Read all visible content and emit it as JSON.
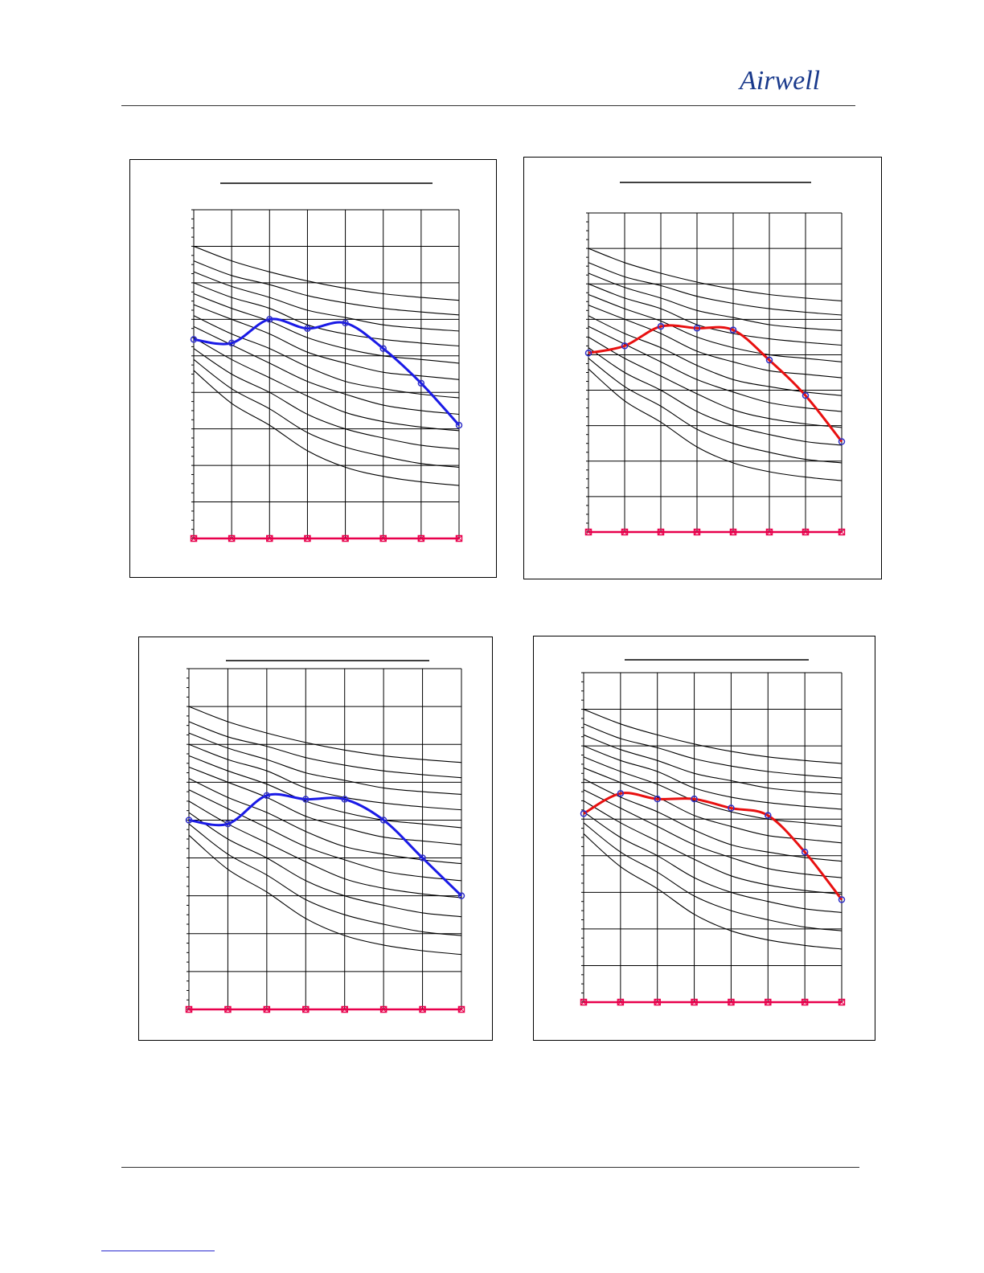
{
  "header": {
    "logo_text": "Airwell",
    "logo_color": "#1a3a8c"
  },
  "colors": {
    "grid": "#000000",
    "baseline": "#e8004c",
    "blue_series": "#1a1ae6",
    "red_series": "#e81010",
    "marker": "#3030c8"
  },
  "chart_data": [
    {
      "type": "line",
      "title": "",
      "x": [
        0,
        1,
        2,
        3,
        4,
        5,
        6,
        7
      ],
      "ylim": [
        0,
        9
      ],
      "grid": true,
      "background_curves": [
        [
          8.0,
          7.6,
          7.3,
          7.05,
          6.85,
          6.7,
          6.6,
          6.52
        ],
        [
          7.6,
          7.2,
          6.95,
          6.65,
          6.45,
          6.3,
          6.2,
          6.12
        ],
        [
          7.3,
          6.9,
          6.6,
          6.25,
          6.05,
          5.85,
          5.75,
          5.68
        ],
        [
          7.0,
          6.6,
          6.3,
          5.85,
          5.6,
          5.45,
          5.35,
          5.27
        ],
        [
          6.7,
          6.3,
          5.95,
          5.5,
          5.2,
          5.0,
          4.9,
          4.8
        ],
        [
          6.4,
          6.0,
          5.6,
          5.1,
          4.8,
          4.55,
          4.45,
          4.35
        ],
        [
          6.1,
          5.6,
          5.2,
          4.7,
          4.3,
          4.1,
          3.95,
          3.85
        ],
        [
          5.8,
          5.3,
          4.8,
          4.3,
          3.95,
          3.65,
          3.5,
          3.4
        ],
        [
          5.5,
          4.9,
          4.4,
          3.9,
          3.45,
          3.2,
          3.05,
          2.95
        ],
        [
          5.2,
          4.5,
          4.0,
          3.4,
          3.0,
          2.75,
          2.55,
          2.45
        ],
        [
          4.9,
          4.1,
          3.55,
          2.9,
          2.5,
          2.25,
          2.05,
          1.95
        ],
        [
          4.6,
          3.7,
          3.1,
          2.4,
          1.95,
          1.7,
          1.55,
          1.45
        ]
      ],
      "series": [
        {
          "color": "#1a1ae6",
          "values": [
            5.45,
            5.35,
            6.0,
            5.75,
            5.9,
            5.2,
            4.25,
            3.1
          ]
        },
        {
          "color": "#e8004c",
          "values": [
            0,
            0,
            0,
            0,
            0,
            0,
            0,
            0
          ]
        }
      ]
    },
    {
      "type": "line",
      "title": "",
      "x": [
        0,
        1,
        2,
        3,
        4,
        5,
        6,
        7
      ],
      "ylim": [
        0,
        9
      ],
      "grid": true,
      "background_curves": [
        [
          8.0,
          7.6,
          7.3,
          7.05,
          6.85,
          6.7,
          6.6,
          6.52
        ],
        [
          7.6,
          7.2,
          6.95,
          6.65,
          6.45,
          6.3,
          6.2,
          6.12
        ],
        [
          7.3,
          6.9,
          6.6,
          6.25,
          6.05,
          5.85,
          5.75,
          5.68
        ],
        [
          7.0,
          6.6,
          6.3,
          5.85,
          5.6,
          5.45,
          5.35,
          5.27
        ],
        [
          6.7,
          6.3,
          5.95,
          5.5,
          5.2,
          5.0,
          4.9,
          4.8
        ],
        [
          6.4,
          6.0,
          5.6,
          5.1,
          4.8,
          4.55,
          4.45,
          4.35
        ],
        [
          6.1,
          5.6,
          5.2,
          4.7,
          4.3,
          4.1,
          3.95,
          3.85
        ],
        [
          5.8,
          5.3,
          4.8,
          4.3,
          3.95,
          3.65,
          3.5,
          3.4
        ],
        [
          5.5,
          4.9,
          4.4,
          3.9,
          3.45,
          3.2,
          3.05,
          2.95
        ],
        [
          5.2,
          4.5,
          4.0,
          3.4,
          3.0,
          2.75,
          2.55,
          2.45
        ],
        [
          4.9,
          4.1,
          3.55,
          2.9,
          2.5,
          2.25,
          2.05,
          1.95
        ],
        [
          4.6,
          3.7,
          3.1,
          2.4,
          1.95,
          1.7,
          1.55,
          1.45
        ]
      ],
      "series": [
        {
          "color": "#e81010",
          "values": [
            5.05,
            5.25,
            5.8,
            5.75,
            5.7,
            4.85,
            3.85,
            2.55
          ]
        },
        {
          "color": "#e8004c",
          "values": [
            0,
            0,
            0,
            0,
            0,
            0,
            0,
            0
          ]
        }
      ]
    },
    {
      "type": "line",
      "title": "",
      "x": [
        0,
        1,
        2,
        3,
        4,
        5,
        6,
        7
      ],
      "ylim": [
        0,
        9
      ],
      "grid": true,
      "background_curves": [
        [
          8.0,
          7.6,
          7.3,
          7.05,
          6.85,
          6.7,
          6.6,
          6.52
        ],
        [
          7.6,
          7.2,
          6.95,
          6.65,
          6.45,
          6.3,
          6.2,
          6.12
        ],
        [
          7.3,
          6.9,
          6.6,
          6.25,
          6.05,
          5.85,
          5.75,
          5.68
        ],
        [
          7.0,
          6.6,
          6.3,
          5.85,
          5.6,
          5.45,
          5.35,
          5.27
        ],
        [
          6.7,
          6.3,
          5.95,
          5.5,
          5.2,
          5.0,
          4.9,
          4.8
        ],
        [
          6.4,
          6.0,
          5.6,
          5.1,
          4.8,
          4.55,
          4.45,
          4.35
        ],
        [
          6.1,
          5.6,
          5.2,
          4.7,
          4.3,
          4.1,
          3.95,
          3.85
        ],
        [
          5.8,
          5.3,
          4.8,
          4.3,
          3.95,
          3.65,
          3.5,
          3.4
        ],
        [
          5.5,
          4.9,
          4.4,
          3.9,
          3.45,
          3.2,
          3.05,
          2.95
        ],
        [
          5.2,
          4.5,
          4.0,
          3.4,
          3.0,
          2.75,
          2.55,
          2.45
        ],
        [
          4.9,
          4.1,
          3.55,
          2.9,
          2.5,
          2.25,
          2.05,
          1.95
        ],
        [
          4.6,
          3.7,
          3.1,
          2.4,
          1.95,
          1.7,
          1.55,
          1.45
        ]
      ],
      "series": [
        {
          "color": "#1a1ae6",
          "values": [
            5.0,
            4.9,
            5.65,
            5.55,
            5.55,
            5.0,
            4.0,
            3.0
          ]
        },
        {
          "color": "#e8004c",
          "values": [
            0,
            0,
            0,
            0,
            0,
            0,
            0,
            0
          ]
        }
      ]
    },
    {
      "type": "line",
      "title": "",
      "x": [
        0,
        1,
        2,
        3,
        4,
        5,
        6,
        7
      ],
      "ylim": [
        0,
        9
      ],
      "grid": true,
      "background_curves": [
        [
          8.0,
          7.6,
          7.3,
          7.05,
          6.85,
          6.7,
          6.6,
          6.52
        ],
        [
          7.6,
          7.2,
          6.95,
          6.65,
          6.45,
          6.3,
          6.2,
          6.12
        ],
        [
          7.3,
          6.9,
          6.6,
          6.25,
          6.05,
          5.85,
          5.75,
          5.68
        ],
        [
          7.0,
          6.6,
          6.3,
          5.85,
          5.6,
          5.45,
          5.35,
          5.27
        ],
        [
          6.7,
          6.3,
          5.95,
          5.5,
          5.2,
          5.0,
          4.9,
          4.8
        ],
        [
          6.4,
          6.0,
          5.6,
          5.1,
          4.8,
          4.55,
          4.45,
          4.35
        ],
        [
          6.1,
          5.6,
          5.2,
          4.7,
          4.3,
          4.1,
          3.95,
          3.85
        ],
        [
          5.8,
          5.3,
          4.8,
          4.3,
          3.95,
          3.65,
          3.5,
          3.4
        ],
        [
          5.5,
          4.9,
          4.4,
          3.9,
          3.45,
          3.2,
          3.05,
          2.95
        ],
        [
          5.2,
          4.5,
          4.0,
          3.4,
          3.0,
          2.75,
          2.55,
          2.45
        ],
        [
          4.9,
          4.1,
          3.55,
          2.9,
          2.5,
          2.25,
          2.05,
          1.95
        ],
        [
          4.6,
          3.7,
          3.1,
          2.4,
          1.95,
          1.7,
          1.55,
          1.45
        ]
      ],
      "series": [
        {
          "color": "#e81010",
          "values": [
            5.15,
            5.7,
            5.55,
            5.55,
            5.3,
            5.1,
            4.1,
            2.8
          ]
        },
        {
          "color": "#e8004c",
          "values": [
            0,
            0,
            0,
            0,
            0,
            0,
            0,
            0
          ]
        }
      ]
    }
  ]
}
